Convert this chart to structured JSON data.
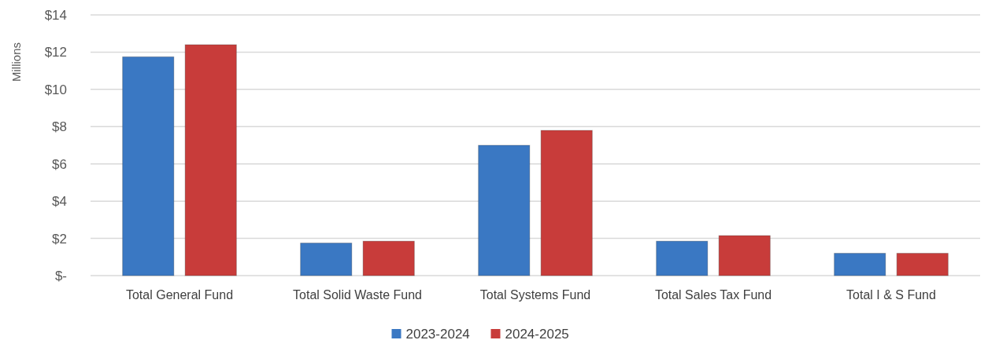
{
  "chart_data": {
    "type": "bar",
    "ylabel": "Millions",
    "categories": [
      "Total General Fund",
      "Total Solid Waste Fund",
      "Total Systems Fund",
      "Total Sales Tax Fund",
      "Total I & S Fund"
    ],
    "series": [
      {
        "name": "2023-2024",
        "color": "#3a78c3",
        "values": [
          11.75,
          1.75,
          7.0,
          1.85,
          1.2
        ]
      },
      {
        "name": "2024-2025",
        "color": "#c83c3a",
        "values": [
          12.4,
          1.85,
          7.8,
          2.15,
          1.2
        ]
      }
    ],
    "ylim": [
      0,
      14
    ],
    "yticks": [
      {
        "value": 0,
        "label": "$-"
      },
      {
        "value": 2,
        "label": "$2"
      },
      {
        "value": 4,
        "label": "$4"
      },
      {
        "value": 6,
        "label": "$6"
      },
      {
        "value": 8,
        "label": "$8"
      },
      {
        "value": 10,
        "label": "$10"
      },
      {
        "value": 12,
        "label": "$12"
      },
      {
        "value": 14,
        "label": "$14"
      }
    ],
    "grid": "y",
    "legend": "bottom"
  }
}
